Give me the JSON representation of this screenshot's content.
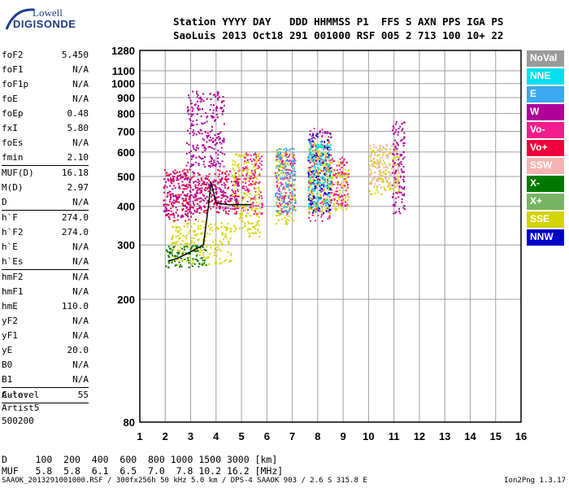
{
  "logo": {
    "line1": "Lowell",
    "line2": "DIGISONDE"
  },
  "header": {
    "labels": "Station YYYY DAY   DDD HHMMSS P1  FFS S AXN PPS IGA PS",
    "values": "SaoLuis 2013 Oct18 291 001000 RSF 005 2 713 100 10+ 22"
  },
  "params": [
    {
      "name": "foF2",
      "value": "5.450"
    },
    {
      "name": "foF1",
      "value": "N/A"
    },
    {
      "name": "foF1p",
      "value": "N/A"
    },
    {
      "name": "foE",
      "value": "N/A"
    },
    {
      "name": "foEp",
      "value": "0.48"
    },
    {
      "name": "fxI",
      "value": "5.80"
    },
    {
      "name": "foEs",
      "value": "N/A"
    },
    {
      "name": "fmin",
      "value": "2.10",
      "sep": true
    },
    {
      "name": "MUF(D)",
      "value": "16.18"
    },
    {
      "name": "M(D)",
      "value": "2.97"
    },
    {
      "name": "D",
      "value": "N/A",
      "sep": true
    },
    {
      "name": "h`F",
      "value": "274.0"
    },
    {
      "name": "h`F2",
      "value": "274.0"
    },
    {
      "name": "h`E",
      "value": "N/A"
    },
    {
      "name": "h`Es",
      "value": "N/A",
      "sep": true
    },
    {
      "name": "hmF2",
      "value": "N/A"
    },
    {
      "name": "hmF1",
      "value": "N/A"
    },
    {
      "name": "hmE",
      "value": "110.0"
    },
    {
      "name": "yF2",
      "value": "N/A"
    },
    {
      "name": "yF1",
      "value": "N/A"
    },
    {
      "name": "yE",
      "value": "20.0"
    },
    {
      "name": "B0",
      "value": "N/A"
    },
    {
      "name": "B1",
      "value": "N/A",
      "sep": true
    },
    {
      "name": "C-level",
      "value": "55",
      "sep": true
    }
  ],
  "auto": {
    "line1": "Auto:",
    "line2": "Artist5",
    "line3": "500200"
  },
  "legend": [
    {
      "label": "NoVal",
      "color": "#9a9a9a"
    },
    {
      "label": "NNE",
      "color": "#00e0f0"
    },
    {
      "label": "E",
      "color": "#3ca8f0"
    },
    {
      "label": "W",
      "color": "#b0009a"
    },
    {
      "label": "Vo-",
      "color": "#f01e8c"
    },
    {
      "label": "Vo+",
      "color": "#f0003c"
    },
    {
      "label": "SSW",
      "color": "#f4b4b4"
    },
    {
      "label": "X-",
      "color": "#007800"
    },
    {
      "label": "X+",
      "color": "#78b464"
    },
    {
      "label": "SSE",
      "color": "#d4d400"
    },
    {
      "label": "NNW",
      "color": "#0000c8"
    }
  ],
  "muf_table": {
    "d_line": "D     100  200  400  600  800 1000 1500 3000 [km]",
    "muf_line": "MUF   5.8  5.8  6.1  6.5  7.0  7.8 10.2 16.2 [MHz]"
  },
  "footer": {
    "left": "SAAOK_2013291001000.RSF / 300fx256h 50 kHz 5.0 km / DPS-4 SAAOK 903 / 2.6 S 315.8 E",
    "right": "Ion2Png 1.3.17"
  },
  "chart_data": {
    "type": "scatter",
    "title": "",
    "xlabel": "",
    "ylabel": "",
    "x_ticks": [
      1,
      2,
      3,
      4,
      5,
      6,
      7,
      8,
      9,
      10,
      11,
      12,
      13,
      14,
      15,
      16
    ],
    "y_ticks": [
      80,
      200,
      300,
      400,
      500,
      600,
      700,
      800,
      900,
      1000,
      1100,
      1280
    ],
    "xlim": [
      1,
      16
    ],
    "ylim": [
      80,
      1280
    ],
    "y_scale": "log",
    "grid": true,
    "traces": [
      {
        "name": "h`F2 trace",
        "x": [
          2.1,
          2.5,
          3.0,
          3.5,
          3.7,
          3.8,
          4.0,
          4.5,
          5.4
        ],
        "y": [
          265,
          272,
          285,
          300,
          400,
          480,
          410,
          405,
          405
        ],
        "color": "#000000"
      }
    ],
    "clusters": [
      {
        "x": [
          1.9,
          3.2
        ],
        "y": [
          360,
          530
        ],
        "color": "#f0003c"
      },
      {
        "x": [
          1.9,
          3.2
        ],
        "y": [
          370,
          520
        ],
        "color": "#b0009a"
      },
      {
        "x": [
          3.2,
          4.9
        ],
        "y": [
          380,
          530
        ],
        "color": "#f0003c"
      },
      {
        "x": [
          3.2,
          4.9
        ],
        "y": [
          390,
          500
        ],
        "color": "#b0009a"
      },
      {
        "x": [
          2.8,
          4.3
        ],
        "y": [
          540,
          950
        ],
        "color": "#b0009a"
      },
      {
        "x": [
          2.2,
          4.6
        ],
        "y": [
          260,
          360
        ],
        "color": "#d4d400"
      },
      {
        "x": [
          2.0,
          3.6
        ],
        "y": [
          255,
          300
        ],
        "color": "#007800"
      },
      {
        "x": [
          4.6,
          5.7
        ],
        "y": [
          320,
          600
        ],
        "color": "#d4d400"
      },
      {
        "x": [
          5.0,
          5.8
        ],
        "y": [
          380,
          600
        ],
        "color": "#f01e8c"
      },
      {
        "x": [
          6.3,
          7.1
        ],
        "y": [
          350,
          620
        ],
        "color": "#d4d400"
      },
      {
        "x": [
          6.3,
          7.1
        ],
        "y": [
          380,
          600
        ],
        "color": "#f01e8c"
      },
      {
        "x": [
          6.3,
          7.1
        ],
        "y": [
          380,
          620
        ],
        "color": "#3ca8f0"
      },
      {
        "x": [
          7.6,
          8.5
        ],
        "y": [
          360,
          720
        ],
        "color": "#f01e8c"
      },
      {
        "x": [
          7.6,
          8.5
        ],
        "y": [
          380,
          700
        ],
        "color": "#0000c8"
      },
      {
        "x": [
          7.6,
          8.5
        ],
        "y": [
          380,
          650
        ],
        "color": "#d4d400"
      },
      {
        "x": [
          7.6,
          8.5
        ],
        "y": [
          400,
          650
        ],
        "color": "#00e0f0"
      },
      {
        "x": [
          8.5,
          9.2
        ],
        "y": [
          390,
          560
        ],
        "color": "#d4d400"
      },
      {
        "x": [
          8.5,
          9.2
        ],
        "y": [
          400,
          580
        ],
        "color": "#f01e8c"
      },
      {
        "x": [
          10.0,
          11.2
        ],
        "y": [
          440,
          620
        ],
        "color": "#d4d400"
      },
      {
        "x": [
          10.0,
          11.2
        ],
        "y": [
          460,
          640
        ],
        "color": "#f4b4b4"
      },
      {
        "x": [
          10.9,
          11.4
        ],
        "y": [
          380,
          760
        ],
        "color": "#b0009a"
      }
    ]
  }
}
